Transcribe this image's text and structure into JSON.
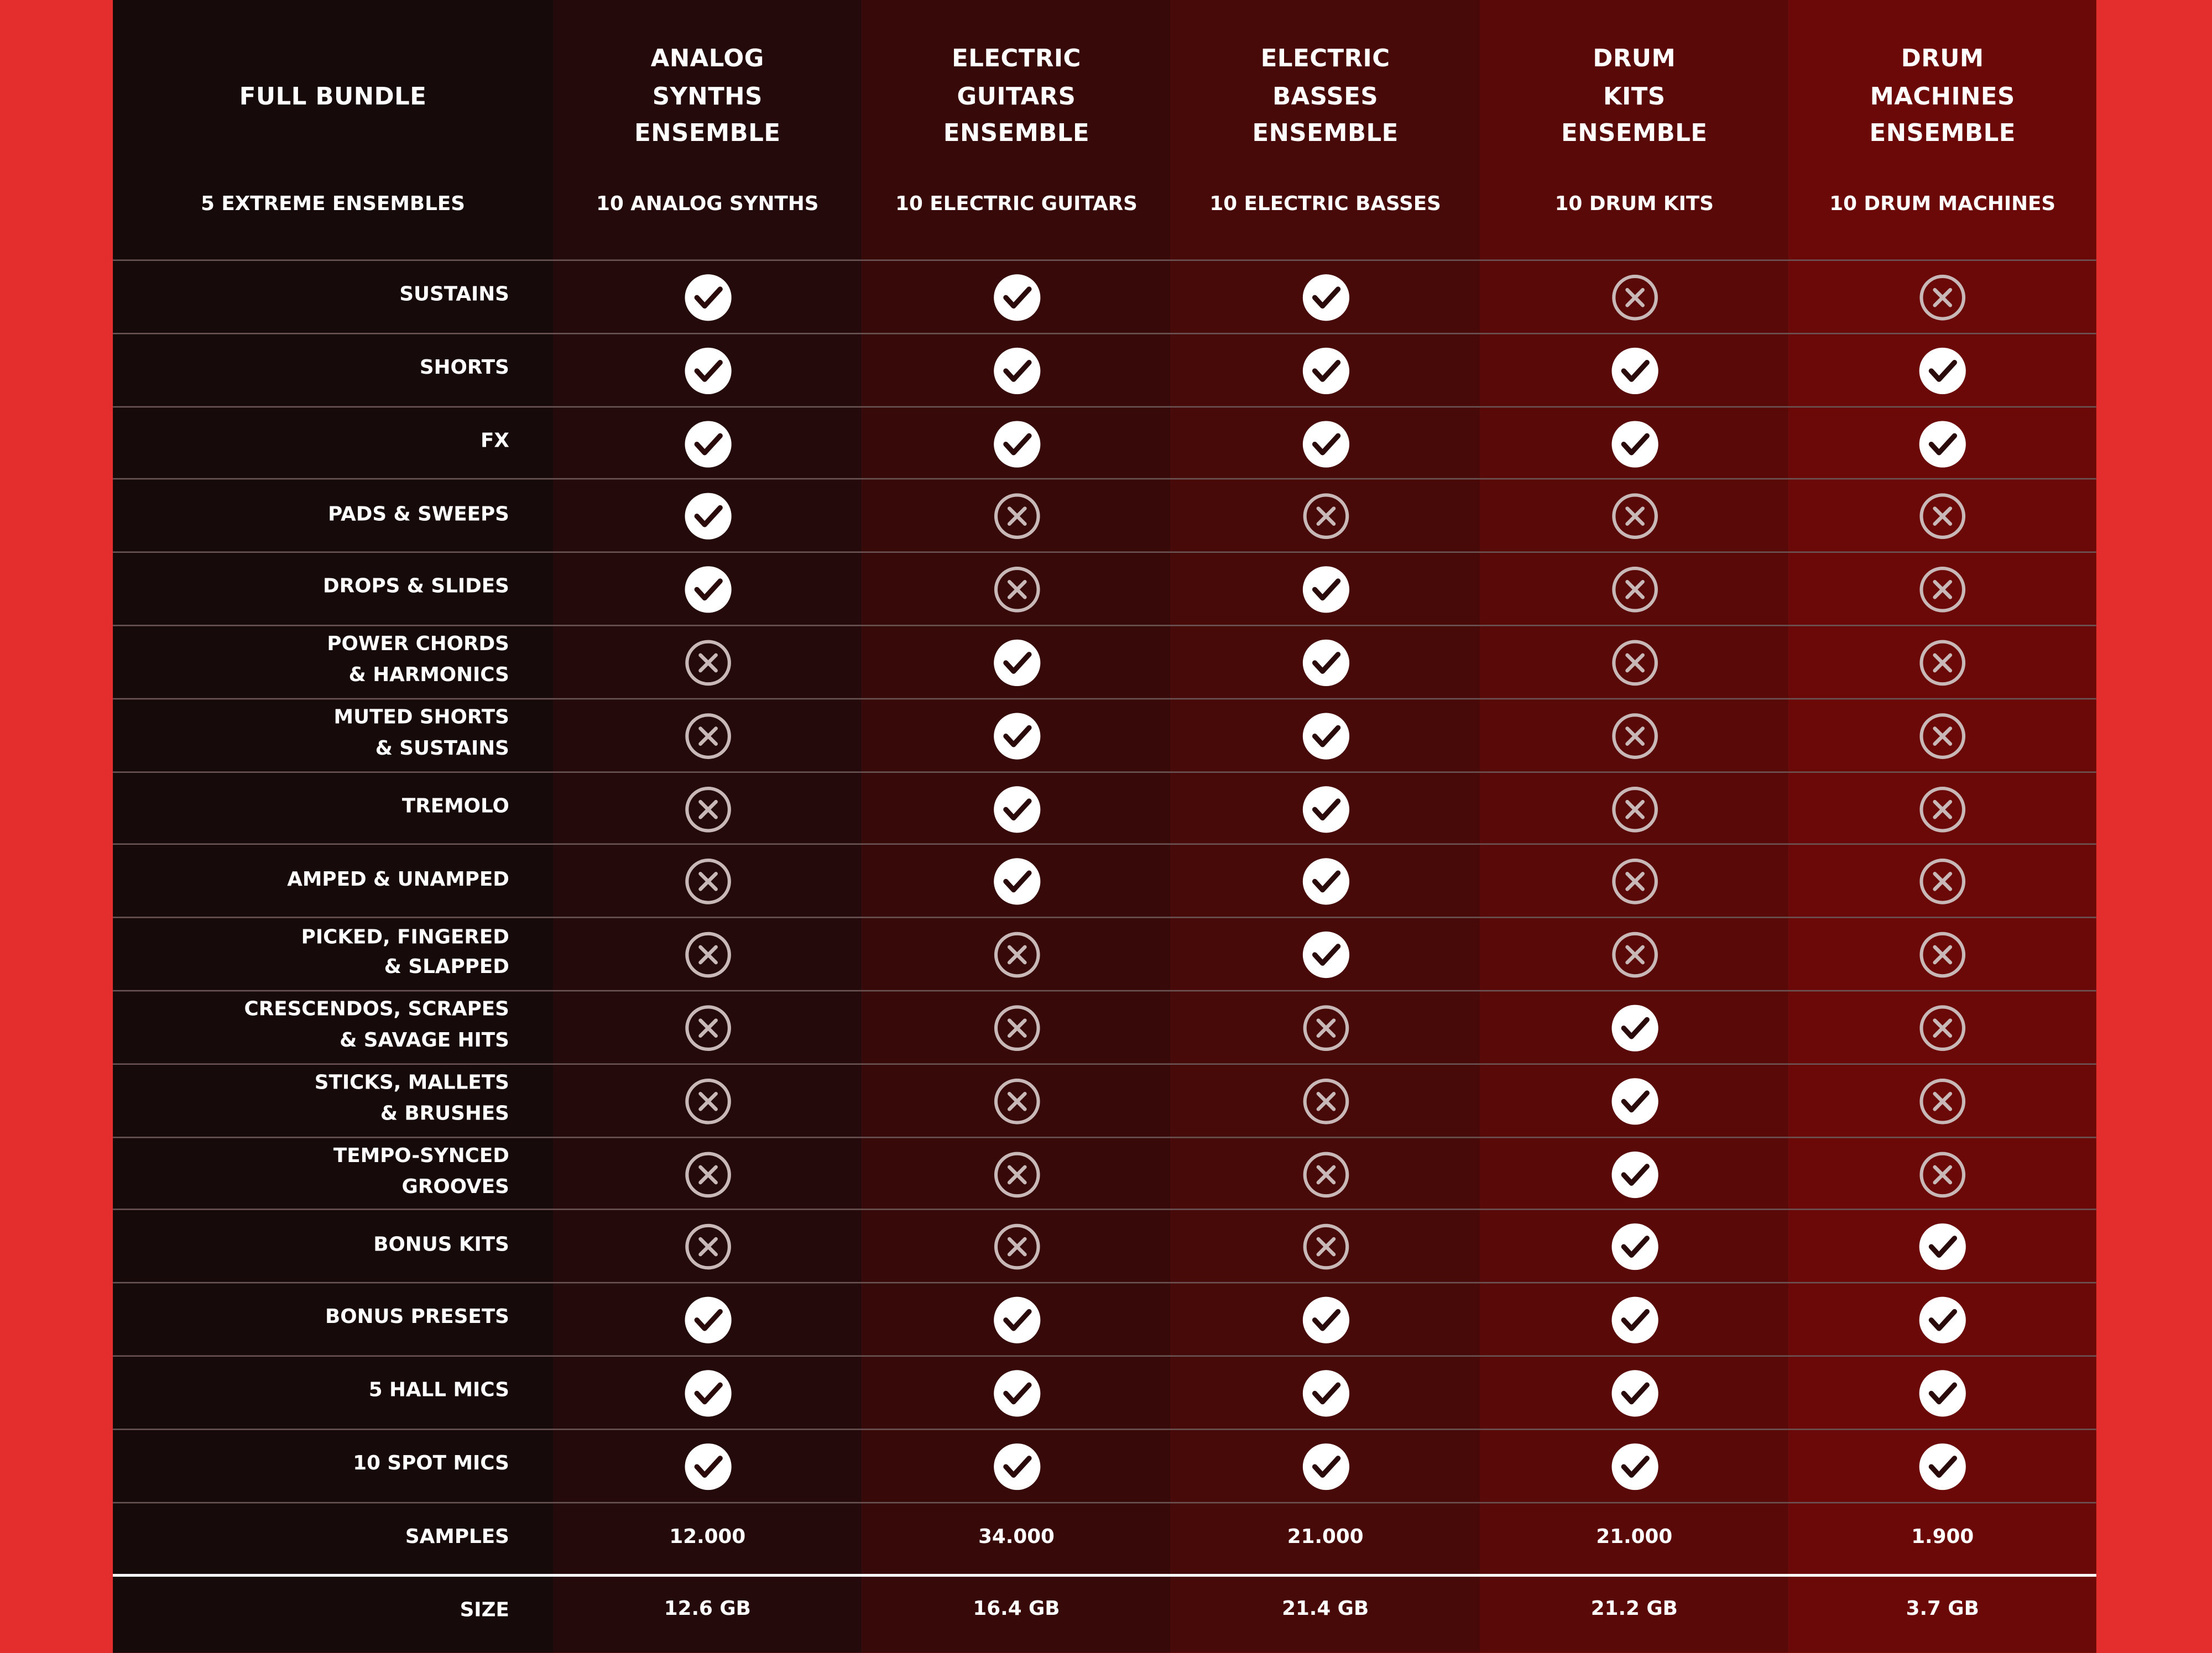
{
  "table": {
    "header": {
      "title": [
        "FULL BUNDLE"
      ],
      "subtitle": "5 EXTREME ENSEMBLES"
    },
    "columns": [
      {
        "title": [
          "ANALOG",
          "SYNTHS",
          "ENSEMBLE"
        ],
        "subtitle": "10 ANALOG SYNTHS"
      },
      {
        "title": [
          "ELECTRIC",
          "GUITARS",
          "ENSEMBLE"
        ],
        "subtitle": "10 ELECTRIC GUITARS"
      },
      {
        "title": [
          "ELECTRIC",
          "BASSES",
          "ENSEMBLE"
        ],
        "subtitle": "10 ELECTRIC BASSES"
      },
      {
        "title": [
          "DRUM",
          "KITS",
          "ENSEMBLE"
        ],
        "subtitle": "10 DRUM KITS"
      },
      {
        "title": [
          "DRUM",
          "MACHINES",
          "ENSEMBLE"
        ],
        "subtitle": "10 DRUM MACHINES"
      }
    ],
    "features": [
      {
        "label": [
          "SUSTAINS"
        ],
        "included": [
          true,
          true,
          true,
          false,
          false
        ]
      },
      {
        "label": [
          "SHORTS"
        ],
        "included": [
          true,
          true,
          true,
          true,
          true
        ]
      },
      {
        "label": [
          "FX"
        ],
        "included": [
          true,
          true,
          true,
          true,
          true
        ]
      },
      {
        "label": [
          "PADS & SWEEPS"
        ],
        "included": [
          true,
          false,
          false,
          false,
          false
        ]
      },
      {
        "label": [
          "DROPS & SLIDES"
        ],
        "included": [
          true,
          false,
          true,
          false,
          false
        ]
      },
      {
        "label": [
          "POWER CHORDS",
          "& HARMONICS"
        ],
        "included": [
          false,
          true,
          true,
          false,
          false
        ]
      },
      {
        "label": [
          "MUTED SHORTS",
          "& SUSTAINS"
        ],
        "included": [
          false,
          true,
          true,
          false,
          false
        ]
      },
      {
        "label": [
          "TREMOLO"
        ],
        "included": [
          false,
          true,
          true,
          false,
          false
        ]
      },
      {
        "label": [
          "AMPED & UNAMPED"
        ],
        "included": [
          false,
          true,
          true,
          false,
          false
        ]
      },
      {
        "label": [
          "PICKED, FINGERED",
          "& SLAPPED"
        ],
        "included": [
          false,
          false,
          true,
          false,
          false
        ]
      },
      {
        "label": [
          "CRESCENDOS, SCRAPES",
          "& SAVAGE HITS"
        ],
        "included": [
          false,
          false,
          false,
          true,
          false
        ]
      },
      {
        "label": [
          "STICKS, MALLETS",
          "& BRUSHES"
        ],
        "included": [
          false,
          false,
          false,
          true,
          false
        ]
      },
      {
        "label": [
          "TEMPO-SYNCED",
          "GROOVES"
        ],
        "included": [
          false,
          false,
          false,
          true,
          false
        ]
      },
      {
        "label": [
          "BONUS KITS"
        ],
        "included": [
          false,
          false,
          false,
          true,
          true
        ]
      },
      {
        "label": [
          "BONUS PRESETS"
        ],
        "included": [
          true,
          true,
          true,
          true,
          true
        ]
      },
      {
        "label": [
          "5 HALL MICS"
        ],
        "included": [
          true,
          true,
          true,
          true,
          true
        ]
      },
      {
        "label": [
          "10 SPOT MICS"
        ],
        "included": [
          true,
          true,
          true,
          true,
          true
        ]
      }
    ],
    "stats": [
      {
        "label": [
          "SAMPLES"
        ],
        "values": [
          "12.000",
          "34.000",
          "21.000",
          "21.000",
          "1.900"
        ]
      },
      {
        "label": [
          "SIZE"
        ],
        "values": [
          "12.6 GB",
          "16.4 GB",
          "21.4 GB",
          "21.2 GB",
          "3.7 GB"
        ]
      }
    ]
  }
}
